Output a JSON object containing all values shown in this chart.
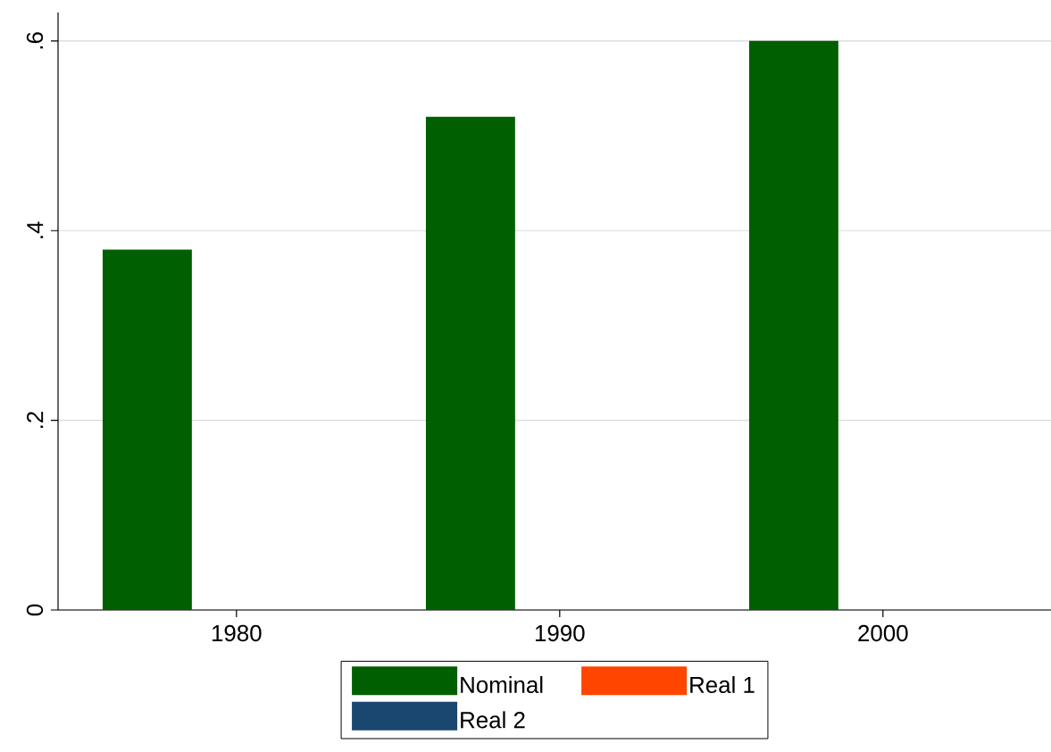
{
  "chart_data": {
    "type": "bar",
    "categories": [
      "1980",
      "1990",
      "2000"
    ],
    "series": [
      {
        "name": "Nominal",
        "color": "#005f00",
        "values": [
          0.38,
          0.52,
          0.6
        ]
      },
      {
        "name": "Real 1",
        "color": "#ff4500",
        "values": [
          null,
          null,
          null
        ]
      },
      {
        "name": "Real 2",
        "color": "#1a476f",
        "values": [
          null,
          null,
          null
        ]
      }
    ],
    "ylim": [
      0,
      0.63
    ],
    "yticks": [
      0,
      {
        "value": 0.2,
        "label": ".2"
      },
      {
        "value": 0.4,
        "label": ".4"
      },
      {
        "value": 0.6,
        "label": ".6"
      }
    ],
    "grid": "y",
    "legend": "bottom"
  }
}
